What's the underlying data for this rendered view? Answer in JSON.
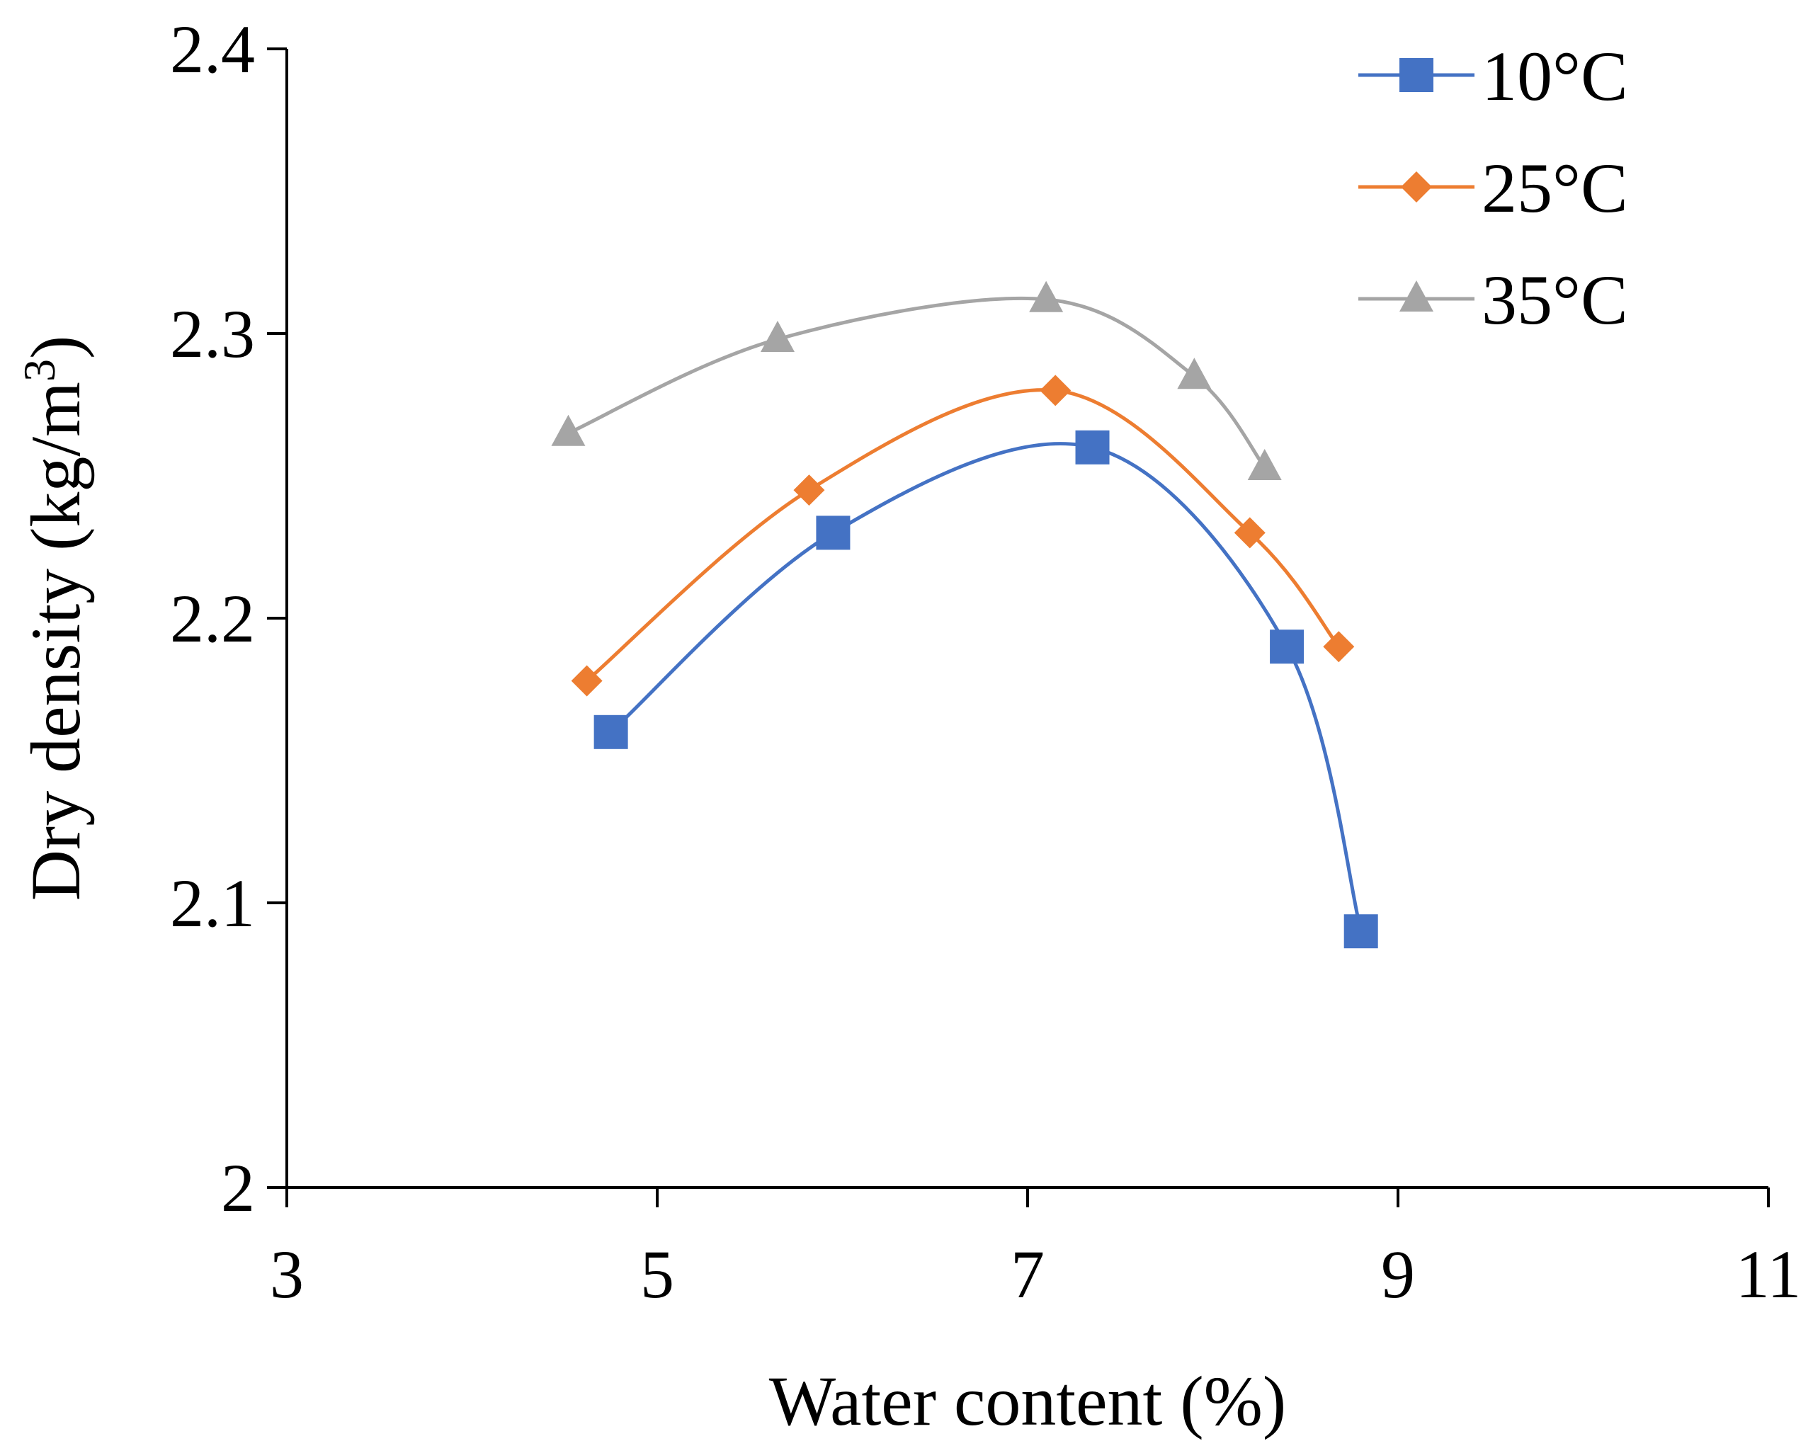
{
  "chart_data": {
    "type": "line",
    "xlabel": "Water content (%)",
    "ylabel": "Dry density (kg/m",
    "ylabel_sup": "3",
    "ylabel_close": ")",
    "xlim": [
      3,
      11
    ],
    "ylim": [
      2.0,
      2.4
    ],
    "xticks": [
      "3",
      "5",
      "7",
      "9",
      "11"
    ],
    "xtick_values": [
      3,
      5,
      7,
      9,
      11
    ],
    "yticks": [
      "2",
      "2.1",
      "2.2",
      "2.3",
      "2.4"
    ],
    "ytick_values": [
      2.0,
      2.1,
      2.2,
      2.3,
      2.4
    ],
    "grid": false,
    "legend_position": "top-right",
    "smoothed": true,
    "series": [
      {
        "name": "10°C",
        "color": "#4472C4",
        "marker": "square",
        "x": [
          4.75,
          5.95,
          7.35,
          8.4,
          8.8
        ],
        "y": [
          2.16,
          2.23,
          2.26,
          2.19,
          2.09
        ]
      },
      {
        "name": "25°C",
        "color": "#ED7D31",
        "marker": "diamond",
        "x": [
          4.62,
          5.82,
          7.15,
          8.2,
          8.68
        ],
        "y": [
          2.178,
          2.245,
          2.28,
          2.23,
          2.19
        ]
      },
      {
        "name": "35°C",
        "color": "#A5A5A5",
        "marker": "triangle",
        "x": [
          4.52,
          5.65,
          7.1,
          7.9,
          8.28
        ],
        "y": [
          2.265,
          2.298,
          2.312,
          2.285,
          2.253
        ]
      }
    ]
  }
}
